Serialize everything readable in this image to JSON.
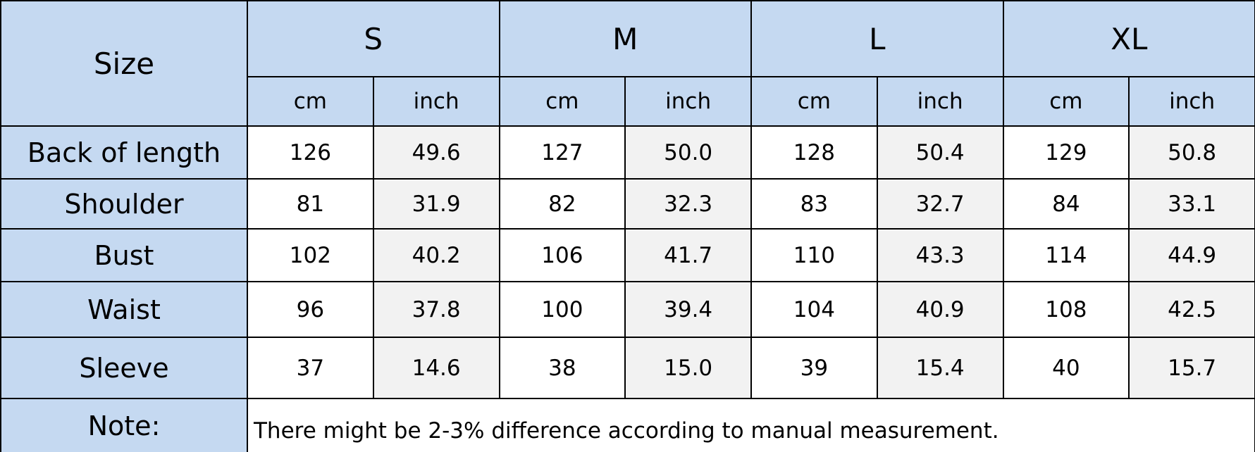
{
  "header": {
    "corner": "Size",
    "sizes": [
      "S",
      "M",
      "L",
      "XL"
    ],
    "units": [
      "cm",
      "inch"
    ]
  },
  "rows": [
    {
      "label": "Back of length",
      "values": [
        "126",
        "49.6",
        "127",
        "50.0",
        "128",
        "50.4",
        "129",
        "50.8"
      ]
    },
    {
      "label": "Shoulder",
      "values": [
        "81",
        "31.9",
        "82",
        "32.3",
        "83",
        "32.7",
        "84",
        "33.1"
      ]
    },
    {
      "label": "Bust",
      "values": [
        "102",
        "40.2",
        "106",
        "41.7",
        "110",
        "43.3",
        "114",
        "44.9"
      ]
    },
    {
      "label": "Waist",
      "values": [
        "96",
        "37.8",
        "100",
        "39.4",
        "104",
        "40.9",
        "108",
        "42.5"
      ]
    },
    {
      "label": "Sleeve",
      "values": [
        "37",
        "14.6",
        "38",
        "15.0",
        "39",
        "15.4",
        "40",
        "15.7"
      ]
    }
  ],
  "note": {
    "label": "Note:",
    "text": "There might be 2-3% difference according to manual measurement."
  }
}
